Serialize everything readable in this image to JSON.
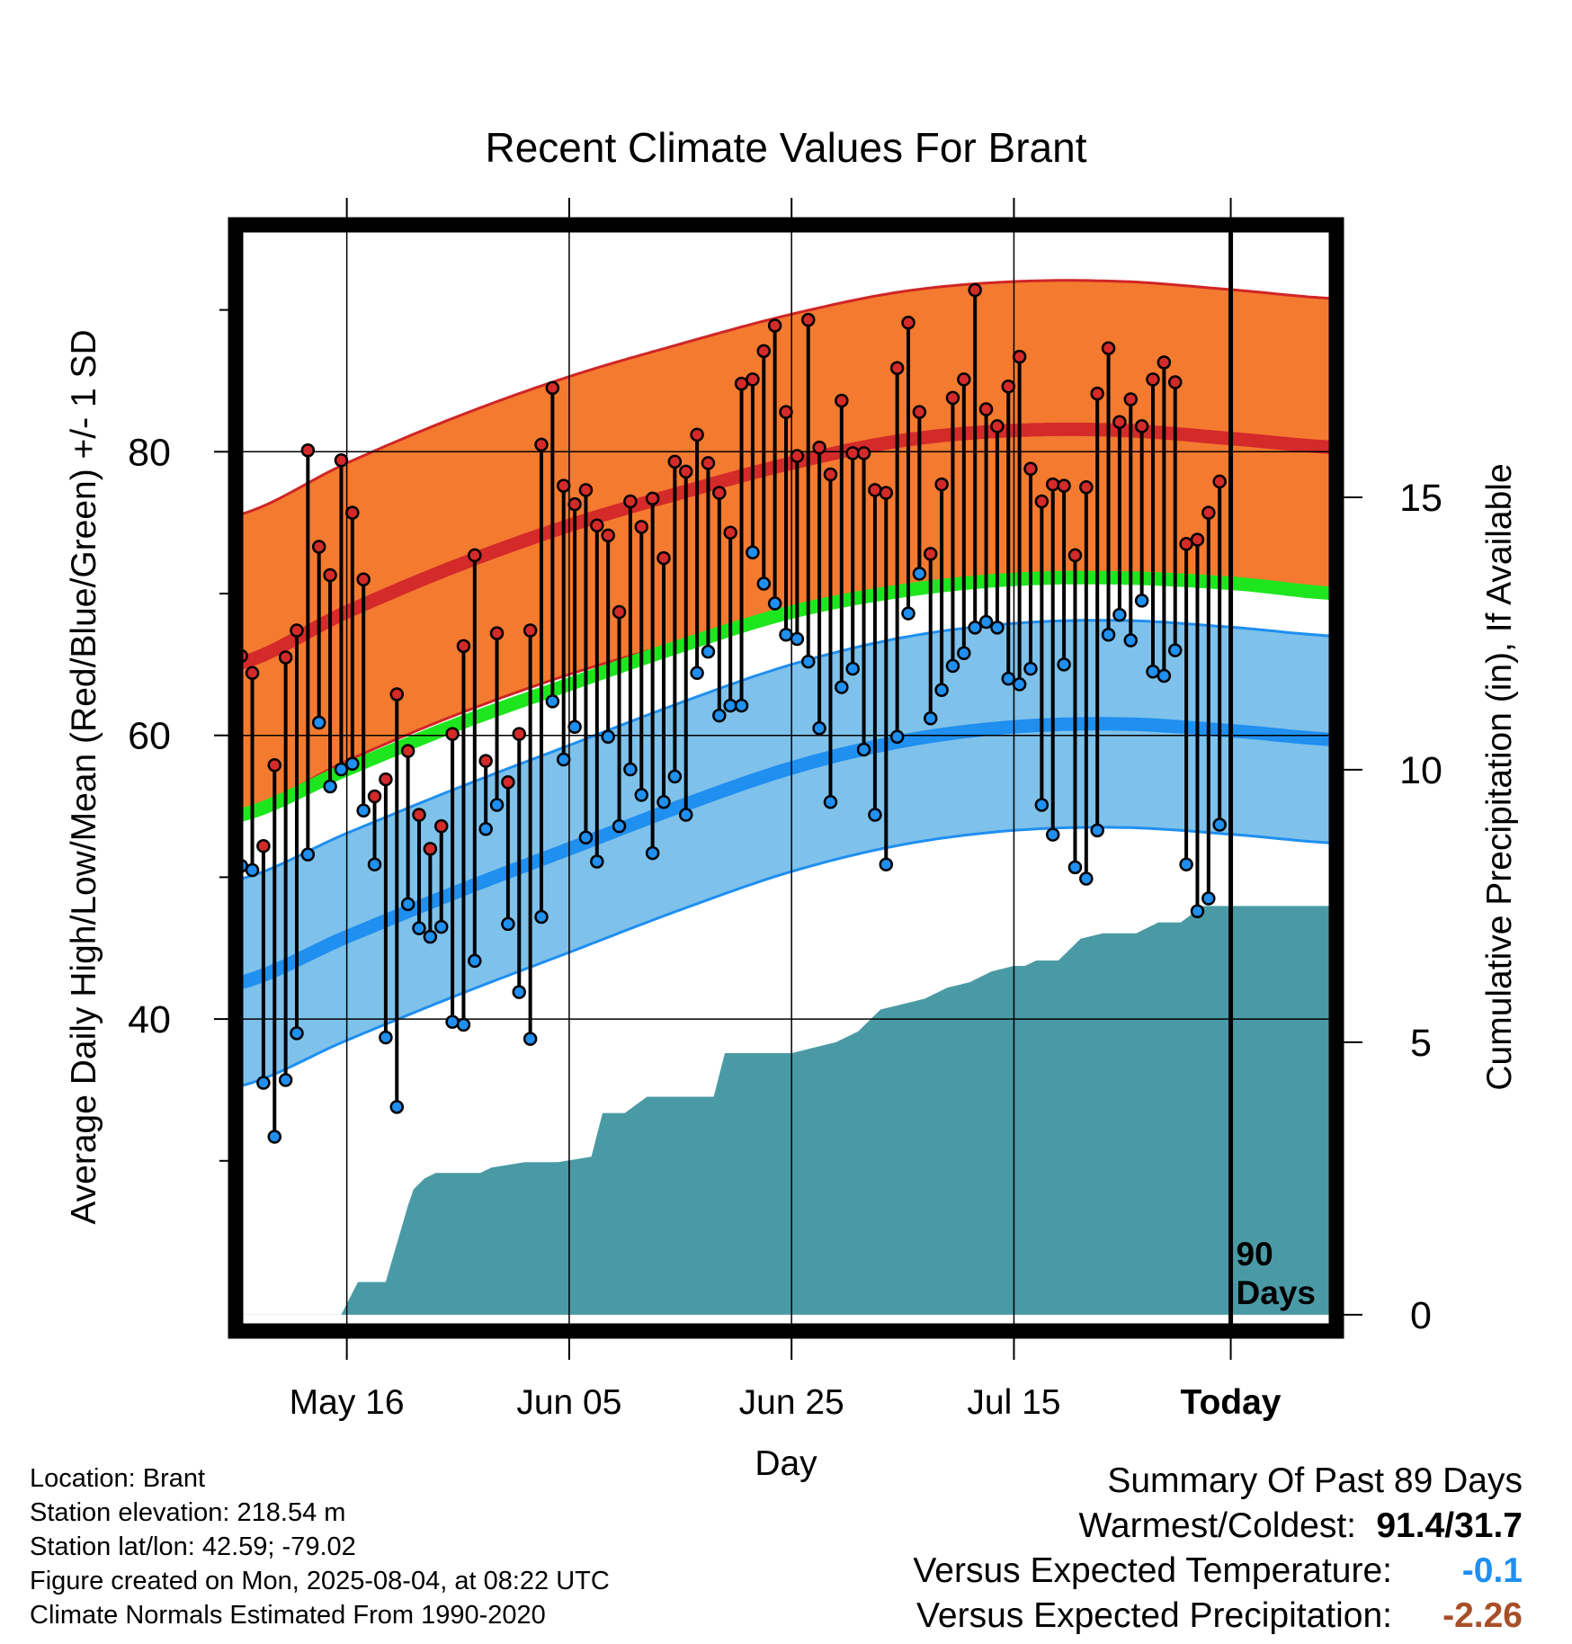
{
  "colors": {
    "high_band": "#f47a30",
    "high_band_edge": "#d02525",
    "high_mean": "#d42a2a",
    "low_band": "#7ec1ea",
    "low_band_edge": "#1f8ff0",
    "low_mean": "#1f8ff0",
    "mean_line": "#1ee61e",
    "precip": "#4a9aa5",
    "high_dot": "#d42a2a",
    "low_dot": "#1f8ff0",
    "departure_temp": "#1f8ff0",
    "departure_precip": "#a84f28"
  },
  "chart_data": {
    "type": "line",
    "title": "Recent Climate Values For Brant",
    "xlabel": "Day",
    "ylabel": "Average Daily High/Low/Mean (Red/Blue/Green) +/- 1 SD",
    "y2label": "Cumulative Precipitation (in), If Available",
    "x_ticks": [
      {
        "day": 10,
        "label": "May 16"
      },
      {
        "day": 30,
        "label": "Jun 05"
      },
      {
        "day": 50,
        "label": "Jun 25"
      },
      {
        "day": 70,
        "label": "Jul 15"
      },
      {
        "day": 89.5,
        "label": "Today"
      }
    ],
    "xlim": [
      0,
      99
    ],
    "ylim": [
      18,
      96
    ],
    "y_ticks": [
      40,
      60,
      80
    ],
    "y_minor_ticks": [
      30,
      50,
      70,
      90
    ],
    "y2lim": [
      -0.3,
      20
    ],
    "y2_ticks": [
      0,
      5,
      10,
      15
    ],
    "today_day": 89.5,
    "today_annotation": [
      "90",
      "Days"
    ],
    "normals": {
      "days": [
        0,
        10,
        20,
        30,
        40,
        50,
        60,
        70,
        80,
        90,
        99
      ],
      "high_mean": [
        65.0,
        68.7,
        72.0,
        74.8,
        77.1,
        79.2,
        80.8,
        81.5,
        81.5,
        80.9,
        80.3
      ],
      "high_sd": 10.5,
      "low_mean": [
        42.5,
        45.8,
        49.0,
        52.0,
        55.0,
        57.7,
        59.6,
        60.6,
        60.8,
        60.3,
        59.7
      ],
      "low_sd": 7.3,
      "mean": [
        54.3,
        57.6,
        60.8,
        63.6,
        66.3,
        68.7,
        70.2,
        71.0,
        71.1,
        70.7,
        70.0
      ]
    },
    "series": [
      {
        "name": "High",
        "values": [
          65.6,
          64.4,
          52.2,
          57.9,
          65.5,
          67.4,
          80.1,
          73.3,
          71.3,
          79.4,
          75.7,
          71.0,
          55.7,
          56.9,
          62.9,
          58.9,
          54.4,
          52.0,
          53.6,
          60.1,
          66.3,
          72.7,
          58.2,
          67.2,
          56.7,
          60.1,
          67.4,
          80.5,
          84.5,
          77.6,
          76.3,
          77.3,
          74.8,
          74.1,
          68.7,
          76.5,
          74.7,
          76.7,
          72.5,
          79.3,
          78.6,
          81.2,
          79.2,
          77.1,
          74.3,
          84.8,
          85.1,
          87.1,
          88.9,
          82.8,
          79.7,
          89.3,
          80.3,
          78.4,
          83.6,
          79.9,
          79.9,
          77.3,
          77.1,
          85.9,
          89.1,
          82.8,
          72.8,
          77.7,
          83.8,
          85.1,
          91.4,
          83.0,
          81.8,
          84.6,
          86.7,
          78.8,
          76.5,
          77.7,
          77.6,
          72.7,
          77.5,
          84.1,
          87.3,
          82.1,
          83.7,
          81.8,
          85.1,
          86.3,
          84.9,
          73.5,
          73.8,
          75.7,
          77.9
        ]
      },
      {
        "name": "Low",
        "values": [
          50.8,
          50.5,
          35.5,
          31.7,
          35.7,
          39.0,
          51.6,
          60.9,
          56.4,
          57.6,
          58.0,
          54.7,
          50.9,
          38.7,
          33.8,
          48.1,
          46.4,
          45.8,
          46.5,
          39.8,
          39.6,
          44.1,
          53.4,
          55.1,
          46.7,
          41.9,
          38.6,
          47.2,
          62.4,
          58.3,
          60.6,
          52.8,
          51.1,
          59.9,
          53.6,
          57.6,
          55.8,
          51.7,
          55.3,
          57.1,
          54.4,
          64.4,
          65.9,
          61.4,
          62.1,
          62.1,
          72.9,
          70.7,
          69.3,
          67.1,
          66.8,
          65.2,
          60.5,
          55.3,
          63.4,
          64.7,
          59.0,
          54.4,
          50.9,
          59.9,
          68.6,
          71.4,
          61.2,
          63.2,
          64.9,
          65.8,
          67.6,
          68.0,
          67.6,
          64.0,
          63.6,
          64.7,
          55.1,
          53.0,
          65.0,
          50.7,
          49.9,
          53.3,
          67.1,
          68.5,
          66.7,
          69.5,
          64.5,
          64.2,
          66.0,
          50.9,
          47.6,
          48.5,
          53.7
        ]
      }
    ],
    "precip_cumulative": {
      "days": [
        0,
        9.5,
        10.5,
        11,
        13.5,
        15.5,
        16,
        17,
        18,
        22,
        23,
        26,
        29,
        32,
        33,
        35,
        37,
        39,
        43,
        44,
        46,
        50,
        52,
        54,
        56,
        58,
        60,
        62,
        64,
        66,
        68,
        70,
        71,
        72,
        74,
        76,
        78,
        81,
        83,
        85,
        87,
        99
      ],
      "values": [
        0,
        0,
        0.4,
        0.6,
        0.6,
        2.0,
        2.3,
        2.5,
        2.6,
        2.6,
        2.7,
        2.8,
        2.8,
        2.9,
        3.7,
        3.7,
        4.0,
        4.0,
        4.0,
        4.8,
        4.8,
        4.8,
        4.9,
        5.0,
        5.2,
        5.6,
        5.7,
        5.8,
        6.0,
        6.1,
        6.3,
        6.4,
        6.4,
        6.5,
        6.5,
        6.9,
        7.0,
        7.0,
        7.2,
        7.2,
        7.5,
        7.5
      ]
    }
  },
  "footer": {
    "location": "Location: Brant",
    "elevation": "Station elevation: 218.54 m",
    "latlon": "Station lat/lon: 42.59; -79.02",
    "created": "Figure created on Mon, 2025-08-04, at 08:22 UTC",
    "normals_note": "Climate Normals Estimated From 1990-2020"
  },
  "summary": {
    "heading": "Summary Of Past 89 Days",
    "warmest_coldest_label": "Warmest/Coldest:",
    "warmest_coldest_value": "91.4/31.7",
    "temp_label": "Versus Expected Temperature:",
    "temp_value": "-0.1",
    "precip_label": "Versus Expected Precipitation:",
    "precip_value": "-2.26"
  }
}
